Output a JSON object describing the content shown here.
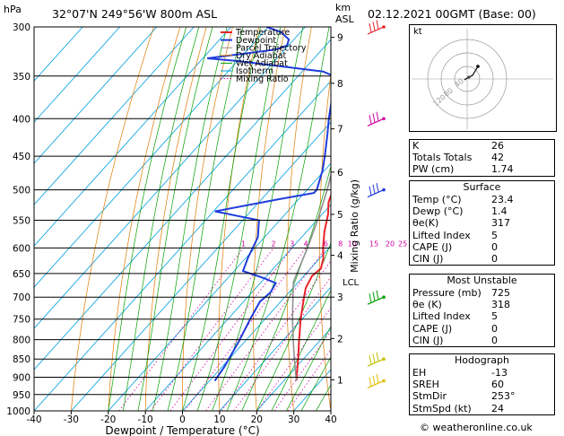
{
  "header": {
    "pressure_unit": "hPa",
    "location": "32°07'N  249°56'W  800m  ASL",
    "km_label": "km",
    "asl_label": "ASL",
    "datetime": "02.12.2021  00GMT  (Base: 00)"
  },
  "legend": [
    "Temperature",
    "Dewpoint",
    "Parcel Trajectory",
    "Dry Adiabat",
    "Wet Adiabat",
    "Isotherm",
    "Mixing Ratio"
  ],
  "colors": {
    "temperature": "#e8232a",
    "dewpoint": "#1f3cdc",
    "parcel": "#909090",
    "dry_adiabat": "#e07a00",
    "wet_adiabat": "#00a000",
    "isotherm": "#00a0e0",
    "mixing_ratio": "#d000a0"
  },
  "chart_data": {
    "type": "line",
    "xlabel": "Dewpoint / Temperature (°C)",
    "ylabel": "Mixing Ratio (g/kg)",
    "pressure_unit": "hPa",
    "xlim": [
      -40,
      40
    ],
    "ylim": [
      1000,
      300
    ],
    "x_ticks": [
      -40,
      -30,
      -20,
      -10,
      0,
      10,
      20,
      30,
      40
    ],
    "pressure_levels": [
      300,
      350,
      400,
      450,
      500,
      550,
      600,
      650,
      700,
      750,
      800,
      850,
      900,
      950,
      1000
    ],
    "km_ticks": [
      {
        "label": "1",
        "p": 907
      },
      {
        "label": "2",
        "p": 797
      },
      {
        "label": "3",
        "p": 700
      },
      {
        "label": "4",
        "p": 614
      },
      {
        "label": "5",
        "p": 540
      },
      {
        "label": "6",
        "p": 473
      },
      {
        "label": "7",
        "p": 413
      },
      {
        "label": "8",
        "p": 358
      },
      {
        "label": "9",
        "p": 310
      }
    ],
    "lcl": {
      "label": "LCL",
      "p": 667
    },
    "mixing_ratio_labels": [
      {
        "label": "1",
        "w": 1
      },
      {
        "label": "2",
        "w": 2
      },
      {
        "label": "3",
        "w": 3
      },
      {
        "label": "4",
        "w": 4
      },
      {
        "label": "6",
        "w": 6
      },
      {
        "label": "8",
        "w": 8
      },
      {
        "label": "10",
        "w": 10
      },
      {
        "label": "15",
        "w": 15
      },
      {
        "label": "20",
        "w": 20
      },
      {
        "label": "25",
        "w": 25
      }
    ],
    "series": [
      {
        "name": "Temperature",
        "data": [
          [
            910,
            23.4
          ],
          [
            850,
            18.6
          ],
          [
            800,
            14.2
          ],
          [
            750,
            9.6
          ],
          [
            700,
            5.2
          ],
          [
            680,
            3.4
          ],
          [
            655,
            2.2
          ],
          [
            640,
            2.8
          ],
          [
            620,
            1.0
          ],
          [
            600,
            -1.6
          ],
          [
            570,
            -5.2
          ],
          [
            540,
            -8.4
          ],
          [
            520,
            -11.2
          ],
          [
            505,
            -12.6
          ],
          [
            480,
            -16.0
          ],
          [
            450,
            -20.6
          ],
          [
            420,
            -25.2
          ],
          [
            400,
            -28.6
          ],
          [
            370,
            -34.4
          ],
          [
            350,
            -38.2
          ],
          [
            320,
            -42.8
          ],
          [
            300,
            -46.4
          ]
        ]
      },
      {
        "name": "Dewpoint",
        "data": [
          [
            910,
            1.4
          ],
          [
            870,
            0.6
          ],
          [
            800,
            -1.8
          ],
          [
            750,
            -4.0
          ],
          [
            710,
            -5.6
          ],
          [
            690,
            -5.0
          ],
          [
            670,
            -5.8
          ],
          [
            660,
            -10.0
          ],
          [
            645,
            -17.6
          ],
          [
            620,
            -19.4
          ],
          [
            580,
            -21.8
          ],
          [
            550,
            -25.6
          ],
          [
            535,
            -39.6
          ],
          [
            515,
            -25.4
          ],
          [
            505,
            -17.4
          ],
          [
            500,
            -17.4
          ],
          [
            470,
            -20.6
          ],
          [
            450,
            -23.4
          ],
          [
            420,
            -28.0
          ],
          [
            400,
            -31.4
          ],
          [
            370,
            -36.4
          ],
          [
            350,
            -40.4
          ],
          [
            345,
            -44.4
          ],
          [
            334,
            -69.4
          ],
          [
            331,
            -78.8
          ],
          [
            322,
            -62.4
          ],
          [
            318,
            -60.4
          ],
          [
            312,
            -61.4
          ],
          [
            305,
            -65.2
          ],
          [
            300,
            -70.4
          ]
        ]
      },
      {
        "name": "Parcel Trajectory",
        "data": [
          [
            910,
            23.4
          ],
          [
            850,
            17.6
          ],
          [
            800,
            12.6
          ],
          [
            750,
            7.4
          ],
          [
            700,
            2.2
          ],
          [
            667,
            -1.4
          ],
          [
            600,
            -5.8
          ],
          [
            550,
            -9.8
          ],
          [
            500,
            -14.6
          ],
          [
            450,
            -20.4
          ],
          [
            400,
            -27.4
          ],
          [
            350,
            -35.8
          ],
          [
            300,
            -45.8
          ]
        ]
      }
    ]
  },
  "hodograph": {
    "unit": "kt",
    "ring_labels": [
      "40",
      "80",
      "120"
    ]
  },
  "indices": [
    {
      "label": "K",
      "value": "26"
    },
    {
      "label": "Totals Totals",
      "value": "42"
    },
    {
      "label": "PW (cm)",
      "value": "1.74"
    }
  ],
  "surface": {
    "title": "Surface",
    "rows": [
      {
        "label": "Temp (°C)",
        "value": "23.4"
      },
      {
        "label": "Dewp (°C)",
        "value": "1.4"
      },
      {
        "label": "θe(K)",
        "value": "317"
      },
      {
        "label": "Lifted Index",
        "value": "5"
      },
      {
        "label": "CAPE (J)",
        "value": "0"
      },
      {
        "label": "CIN (J)",
        "value": "0"
      }
    ]
  },
  "most_unstable": {
    "title": "Most Unstable",
    "rows": [
      {
        "label": "Pressure (mb)",
        "value": "725"
      },
      {
        "label": "θe (K)",
        "value": "318"
      },
      {
        "label": "Lifted Index",
        "value": "5"
      },
      {
        "label": "CAPE (J)",
        "value": "0"
      },
      {
        "label": "CIN (J)",
        "value": "0"
      }
    ]
  },
  "hodograph_table": {
    "title": "Hodograph",
    "rows": [
      {
        "label": "EH",
        "value": "-13"
      },
      {
        "label": "SREH",
        "value": "60"
      },
      {
        "label": "StmDir",
        "value": "253°"
      },
      {
        "label": "StmSpd (kt)",
        "value": "24"
      }
    ]
  },
  "copyright": "© weatheronline.co.uk"
}
